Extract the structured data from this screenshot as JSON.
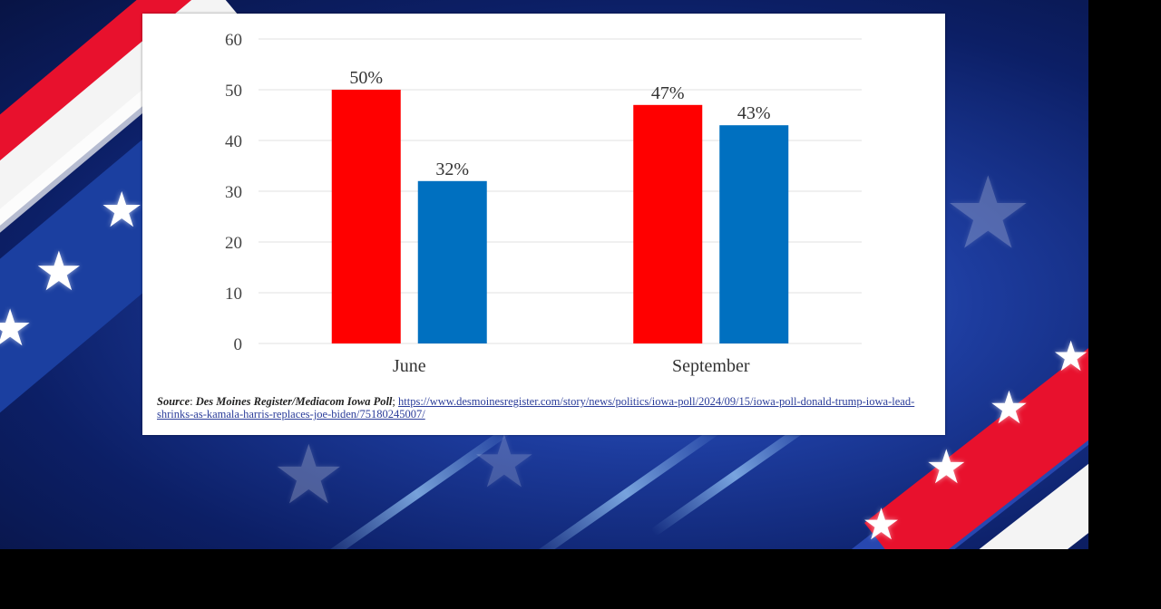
{
  "chart_data": {
    "type": "bar",
    "categories": [
      "June",
      "September"
    ],
    "series": [
      {
        "values": [
          50,
          47
        ],
        "color": "#ff0000",
        "labels": [
          "50%",
          "47%"
        ]
      },
      {
        "values": [
          32,
          43
        ],
        "color": "#0070c0",
        "labels": [
          "32%",
          "43%"
        ]
      }
    ],
    "yticks": [
      "0",
      "10",
      "20",
      "30",
      "40",
      "50",
      "60"
    ],
    "ylim": [
      0,
      60
    ],
    "grid": true,
    "title": "",
    "xlabel": "",
    "ylabel": ""
  },
  "source": {
    "prefix": "Source",
    "separator": ": ",
    "name": "Des Moines Register/Mediacom Iowa Poll",
    "after_name": "; ",
    "url": "https://www.desmoinesregister.com/story/news/politics/iowa-poll/2024/09/15/iowa-poll-donald-trump-iowa-lead-shrinks-as-kamala-harris-replaces-joe-biden/75180245007/"
  },
  "background": {
    "stripe_red": "#e8112d",
    "stripe_white": "#ffffff",
    "stripe_blue": "#1b3fa0"
  }
}
